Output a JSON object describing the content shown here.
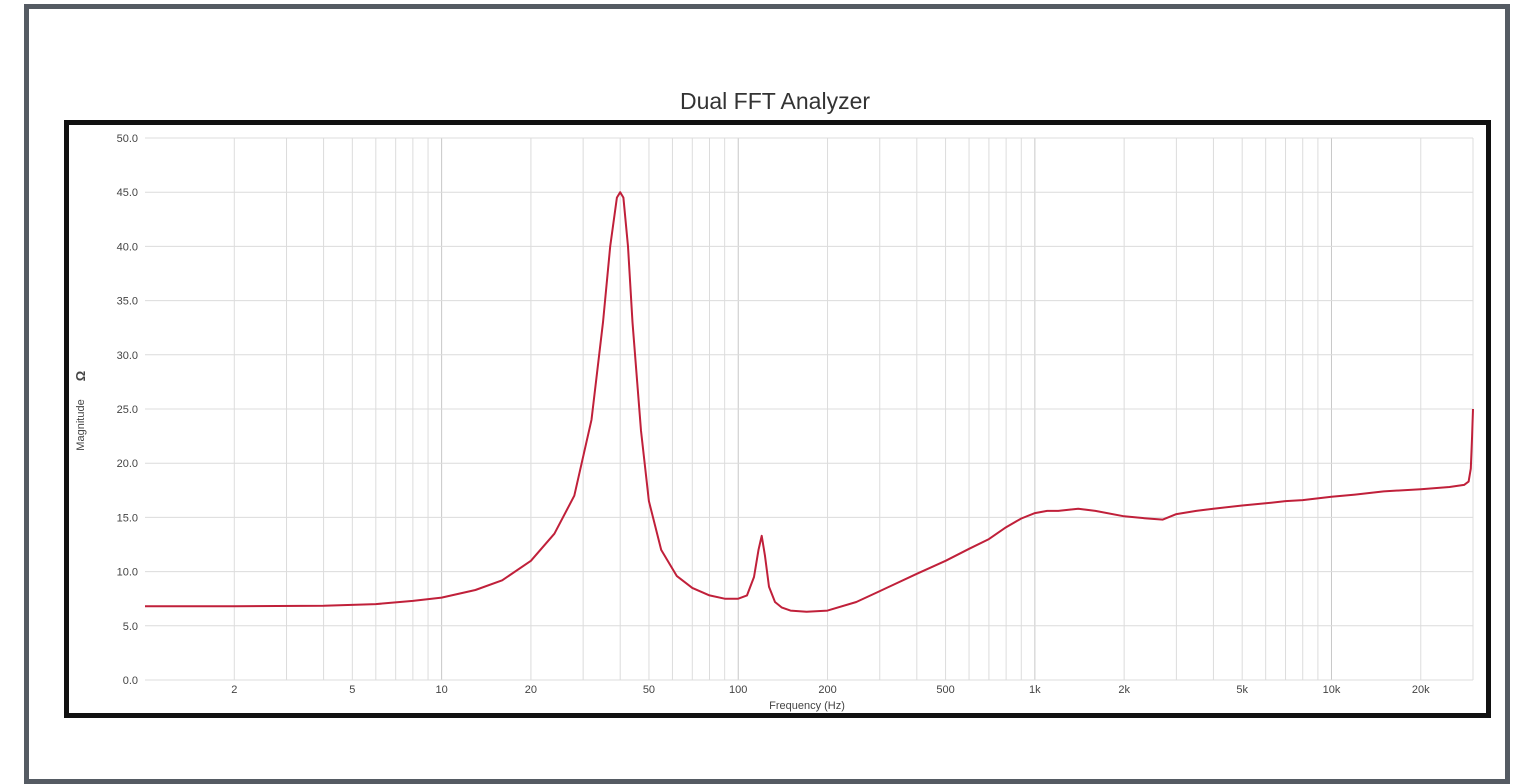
{
  "chart_data": {
    "type": "line",
    "title": "Dual FFT Analyzer",
    "xlabel": "Frequency (Hz)",
    "ylabel": "Magnitude",
    "ylabel_unit": "Ω",
    "x_scale": "log",
    "xlim": [
      1,
      30000
    ],
    "ylim": [
      0,
      50
    ],
    "grid": true,
    "xticks": [
      {
        "v": 2,
        "label": "2"
      },
      {
        "v": 5,
        "label": "5"
      },
      {
        "v": 10,
        "label": "10"
      },
      {
        "v": 20,
        "label": "20"
      },
      {
        "v": 50,
        "label": "50"
      },
      {
        "v": 100,
        "label": "100"
      },
      {
        "v": 200,
        "label": "200"
      },
      {
        "v": 500,
        "label": "500"
      },
      {
        "v": 1000,
        "label": "1k"
      },
      {
        "v": 2000,
        "label": "2k"
      },
      {
        "v": 5000,
        "label": "5k"
      },
      {
        "v": 10000,
        "label": "10k"
      },
      {
        "v": 20000,
        "label": "20k"
      }
    ],
    "yticks": [
      {
        "v": 0,
        "label": "0.0"
      },
      {
        "v": 5,
        "label": "5.0"
      },
      {
        "v": 10,
        "label": "10.0"
      },
      {
        "v": 15,
        "label": "15.0"
      },
      {
        "v": 20,
        "label": "20.0"
      },
      {
        "v": 25,
        "label": "25.0"
      },
      {
        "v": 30,
        "label": "30.0"
      },
      {
        "v": 35,
        "label": "35.0"
      },
      {
        "v": 40,
        "label": "40.0"
      },
      {
        "v": 45,
        "label": "45.0"
      },
      {
        "v": 50,
        "label": "50.0"
      }
    ],
    "series": [
      {
        "color": "#c0203a",
        "x": [
          1,
          2,
          4,
          6,
          8,
          10,
          13,
          16,
          20,
          24,
          28,
          32,
          35,
          37,
          39,
          40,
          41,
          42.5,
          44,
          47,
          50,
          55,
          62,
          70,
          80,
          90,
          100,
          107,
          113,
          117,
          120,
          123,
          127,
          133,
          140,
          150,
          170,
          200,
          250,
          300,
          400,
          500,
          600,
          700,
          800,
          900,
          1000,
          1100,
          1200,
          1400,
          1600,
          2000,
          2400,
          2700,
          3000,
          3500,
          4000,
          5000,
          6000,
          7000,
          8000,
          10000,
          12000,
          15000,
          20000,
          25000,
          28000,
          29000,
          29500,
          29800,
          30000
        ],
        "y": [
          6.8,
          6.8,
          6.85,
          7.0,
          7.3,
          7.6,
          8.3,
          9.2,
          11.0,
          13.5,
          17.0,
          24.0,
          33.0,
          40.0,
          44.5,
          45.0,
          44.5,
          40.0,
          33.0,
          23.0,
          16.5,
          12.0,
          9.6,
          8.5,
          7.8,
          7.5,
          7.5,
          7.8,
          9.5,
          12.0,
          13.3,
          11.5,
          8.6,
          7.2,
          6.7,
          6.4,
          6.3,
          6.4,
          7.2,
          8.2,
          9.8,
          11.0,
          12.1,
          13.0,
          14.1,
          14.9,
          15.4,
          15.6,
          15.6,
          15.8,
          15.6,
          15.1,
          14.9,
          14.8,
          15.3,
          15.6,
          15.8,
          16.1,
          16.3,
          16.5,
          16.6,
          16.9,
          17.1,
          17.4,
          17.6,
          17.8,
          18.0,
          18.3,
          19.5,
          22.5,
          25.0
        ]
      }
    ]
  }
}
